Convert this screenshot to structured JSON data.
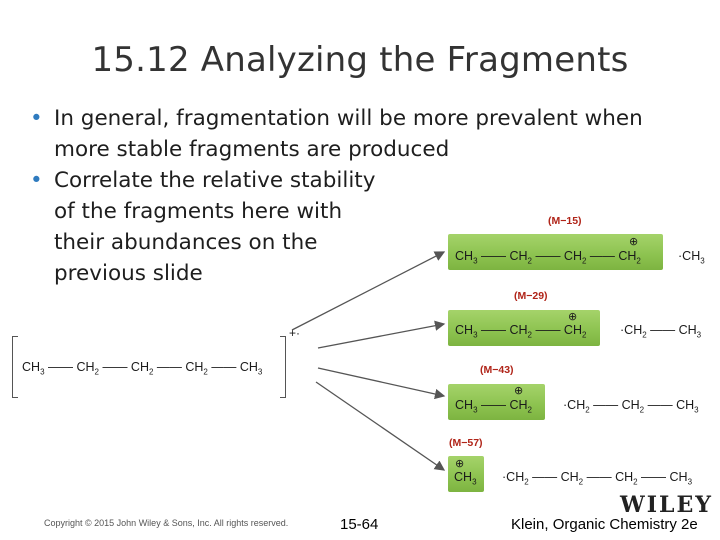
{
  "title": "15.12 Analyzing the Fragments",
  "bullets": [
    "In general, fragmentation will be more prevalent when more stable fragments are produced",
    "Correlate the relative stability of the fragments here with their abundances on the previous slide"
  ],
  "parent_molecule": {
    "charge": "+·",
    "parts": [
      "CH3",
      "CH2",
      "CH2",
      "CH2",
      "CH3"
    ]
  },
  "fragments": [
    {
      "label": "(M−15)",
      "cation": "CH3 — CH2 — CH2 — CH2",
      "charge": "⊕",
      "radical": "·CH3"
    },
    {
      "label": "(M−29)",
      "cation": "CH3 — CH2 — CH2",
      "charge": "⊕",
      "radical": "·CH2 — CH3"
    },
    {
      "label": "(M−43)",
      "cation": "CH3 — CH2",
      "charge": "⊕",
      "radical": "·CH2 — CH2 — CH3"
    },
    {
      "label": "(M−57)",
      "cation": "CH3",
      "charge": "⊕",
      "radical": "·CH2 — CH2 — CH2 — CH3"
    }
  ],
  "footer": {
    "copyright": "Copyright © 2015 John Wiley & Sons, Inc. All rights reserved.",
    "page_number": "15-64",
    "book": "Klein, Organic Chemistry 2e",
    "logo": "WILEY"
  },
  "colors": {
    "bullet": "#2f7bbf",
    "label": "#b02418",
    "green": "#8cc24f"
  }
}
